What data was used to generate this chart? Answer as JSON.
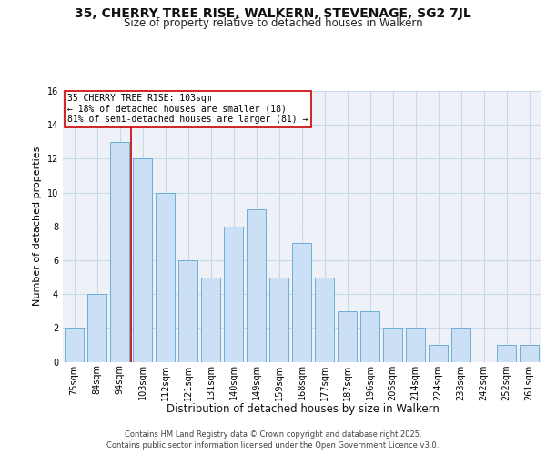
{
  "title": "35, CHERRY TREE RISE, WALKERN, STEVENAGE, SG2 7JL",
  "subtitle": "Size of property relative to detached houses in Walkern",
  "xlabel": "Distribution of detached houses by size in Walkern",
  "ylabel": "Number of detached properties",
  "bins": [
    "75sqm",
    "84sqm",
    "94sqm",
    "103sqm",
    "112sqm",
    "121sqm",
    "131sqm",
    "140sqm",
    "149sqm",
    "159sqm",
    "168sqm",
    "177sqm",
    "187sqm",
    "196sqm",
    "205sqm",
    "214sqm",
    "224sqm",
    "233sqm",
    "242sqm",
    "252sqm",
    "261sqm"
  ],
  "counts": [
    2,
    4,
    13,
    12,
    10,
    6,
    5,
    8,
    9,
    5,
    7,
    5,
    3,
    3,
    2,
    2,
    1,
    2,
    0,
    1,
    1
  ],
  "bar_color": "#cce0f5",
  "bar_edge_color": "#6baed6",
  "red_line_index": 3,
  "annotation_text": "35 CHERRY TREE RISE: 103sqm\n← 18% of detached houses are smaller (18)\n81% of semi-detached houses are larger (81) →",
  "annotation_box_color": "#ffffff",
  "annotation_box_edge": "#cc0000",
  "red_line_color": "#cc0000",
  "footer_text": "Contains HM Land Registry data © Crown copyright and database right 2025.\nContains public sector information licensed under the Open Government Licence v3.0.",
  "ylim": [
    0,
    16
  ],
  "yticks": [
    0,
    2,
    4,
    6,
    8,
    10,
    12,
    14,
    16
  ],
  "grid_color": "#c8d8e8",
  "background_color": "#eef2f8",
  "title_fontsize": 10,
  "subtitle_fontsize": 8.5,
  "ylabel_fontsize": 8,
  "xlabel_fontsize": 8.5,
  "tick_fontsize": 7,
  "footer_fontsize": 6,
  "annot_fontsize": 7
}
